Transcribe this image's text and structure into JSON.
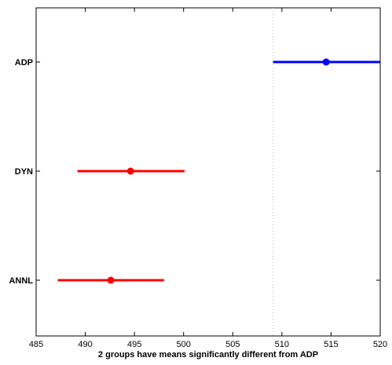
{
  "chart_data": {
    "type": "interval",
    "xlabel": "2 groups have means significantly different from ADP",
    "xlim": [
      485,
      520
    ],
    "x_ticks": [
      485,
      490,
      495,
      500,
      505,
      510,
      515,
      520
    ],
    "categories": [
      "ADP",
      "DYN",
      "ANNL"
    ],
    "intervals": [
      {
        "label": "ADP",
        "mean": 514.5,
        "lower": 509.1,
        "upper": 520.0,
        "color": "#0000ff"
      },
      {
        "label": "DYN",
        "mean": 494.6,
        "lower": 489.2,
        "upper": 500.1,
        "color": "#ff0000"
      },
      {
        "label": "ANNL",
        "mean": 492.6,
        "lower": 487.2,
        "upper": 498.0,
        "color": "#ff0000"
      }
    ],
    "reference_line": {
      "x": 509.1,
      "style": "dotted",
      "color": "#bbbbbb"
    },
    "grid": false
  }
}
